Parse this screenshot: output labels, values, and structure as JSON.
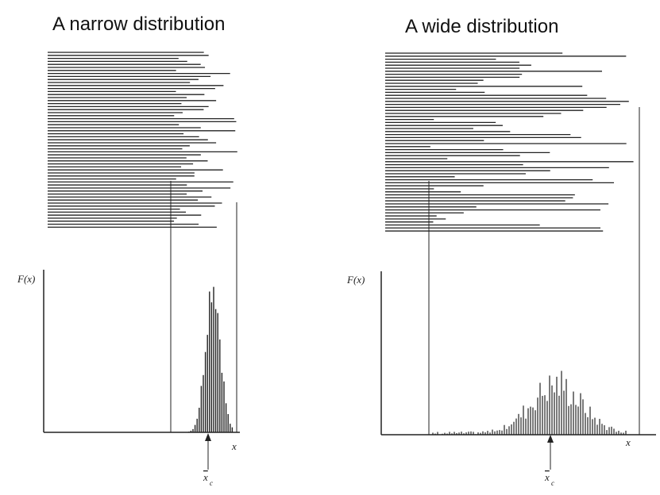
{
  "panels": [
    {
      "title": "A narrow distribution",
      "y_label": "F(x)",
      "x_label": "x",
      "mean_label": "x",
      "mean_subscript": "c"
    },
    {
      "title": "A wide distribution",
      "y_label": "F(x)",
      "x_label": "x",
      "mean_label": "x",
      "mean_subscript": "c"
    }
  ]
}
